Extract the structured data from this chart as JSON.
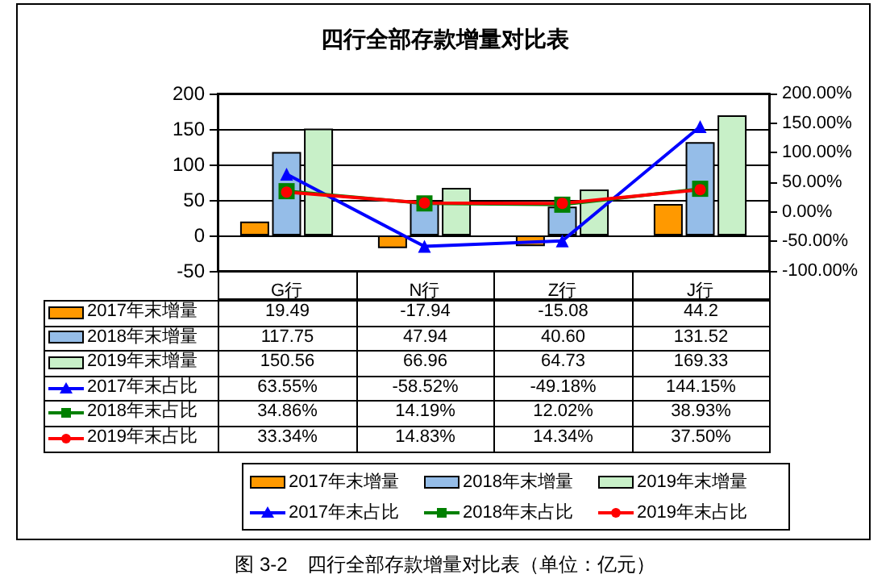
{
  "chart_data": {
    "type": "bar",
    "title": "四行全部存款增量对比表",
    "categories": [
      "G行",
      "N行",
      "Z行",
      "J行"
    ],
    "series": [
      {
        "name": "2017年末增量",
        "type": "bar",
        "color": "#ff9900",
        "values": [
          19.49,
          -17.94,
          -15.08,
          44.2
        ],
        "value_labels": [
          "19.49",
          "-17.94",
          "-15.08",
          "44.2"
        ]
      },
      {
        "name": "2018年末增量",
        "type": "bar",
        "color": "#95bde8",
        "values": [
          117.75,
          47.94,
          40.6,
          131.52
        ],
        "value_labels": [
          "117.75",
          "47.94",
          "40.60",
          "131.52"
        ]
      },
      {
        "name": "2019年末增量",
        "type": "bar",
        "color": "#c8f0c8",
        "values": [
          150.56,
          66.96,
          64.73,
          169.33
        ],
        "value_labels": [
          "150.56",
          "66.96",
          "64.73",
          "169.33"
        ]
      },
      {
        "name": "2017年末占比",
        "type": "line",
        "axis": "y2",
        "marker": "triangle",
        "color": "#0000ff",
        "values": [
          63.55,
          -58.52,
          -49.18,
          144.15
        ],
        "value_labels": [
          "63.55%",
          "-58.52%",
          "-49.18%",
          "144.15%"
        ]
      },
      {
        "name": "2018年末占比",
        "type": "line",
        "axis": "y2",
        "marker": "square",
        "color": "#008000",
        "values": [
          34.86,
          14.19,
          12.02,
          38.93
        ],
        "value_labels": [
          "34.86%",
          "14.19%",
          "12.02%",
          "38.93%"
        ]
      },
      {
        "name": "2019年末占比",
        "type": "line",
        "axis": "y2",
        "marker": "circle",
        "color": "#ff0000",
        "values": [
          33.34,
          14.83,
          14.34,
          37.5
        ],
        "value_labels": [
          "33.34%",
          "14.83%",
          "14.34%",
          "37.50%"
        ]
      }
    ],
    "ylim": [
      -50,
      200
    ],
    "yticks": [
      -50,
      0,
      50,
      100,
      150,
      200
    ],
    "y2lim": [
      -100,
      200
    ],
    "y2ticks": [
      {
        "value": -100,
        "label": "-100.00%"
      },
      {
        "value": -50,
        "label": "-50.00%"
      },
      {
        "value": 0,
        "label": "0.00%"
      },
      {
        "value": 50,
        "label": "50.00%"
      },
      {
        "value": 100,
        "label": "100.00%"
      },
      {
        "value": 150,
        "label": "150.00%"
      },
      {
        "value": 200,
        "label": "200.00%"
      }
    ],
    "grid": "y",
    "legend": "bottom",
    "annotations": [
      "图 3-2　四行全部存款增量对比表（单位：亿元）"
    ]
  }
}
